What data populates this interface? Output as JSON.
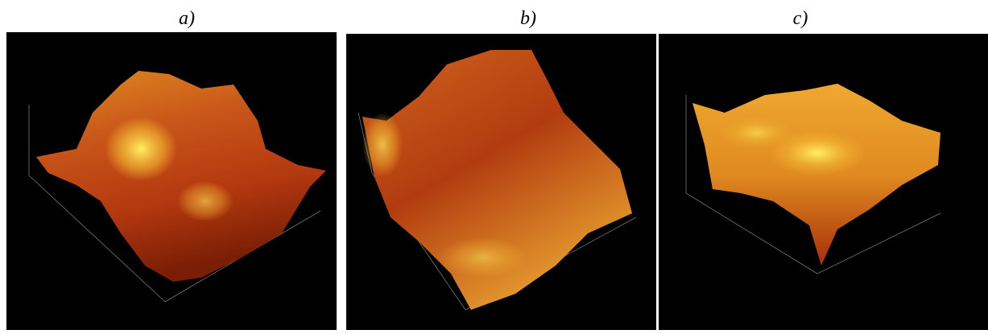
{
  "panels": [
    {
      "label": "a)"
    },
    {
      "label": "b)"
    },
    {
      "label": "c)"
    }
  ]
}
